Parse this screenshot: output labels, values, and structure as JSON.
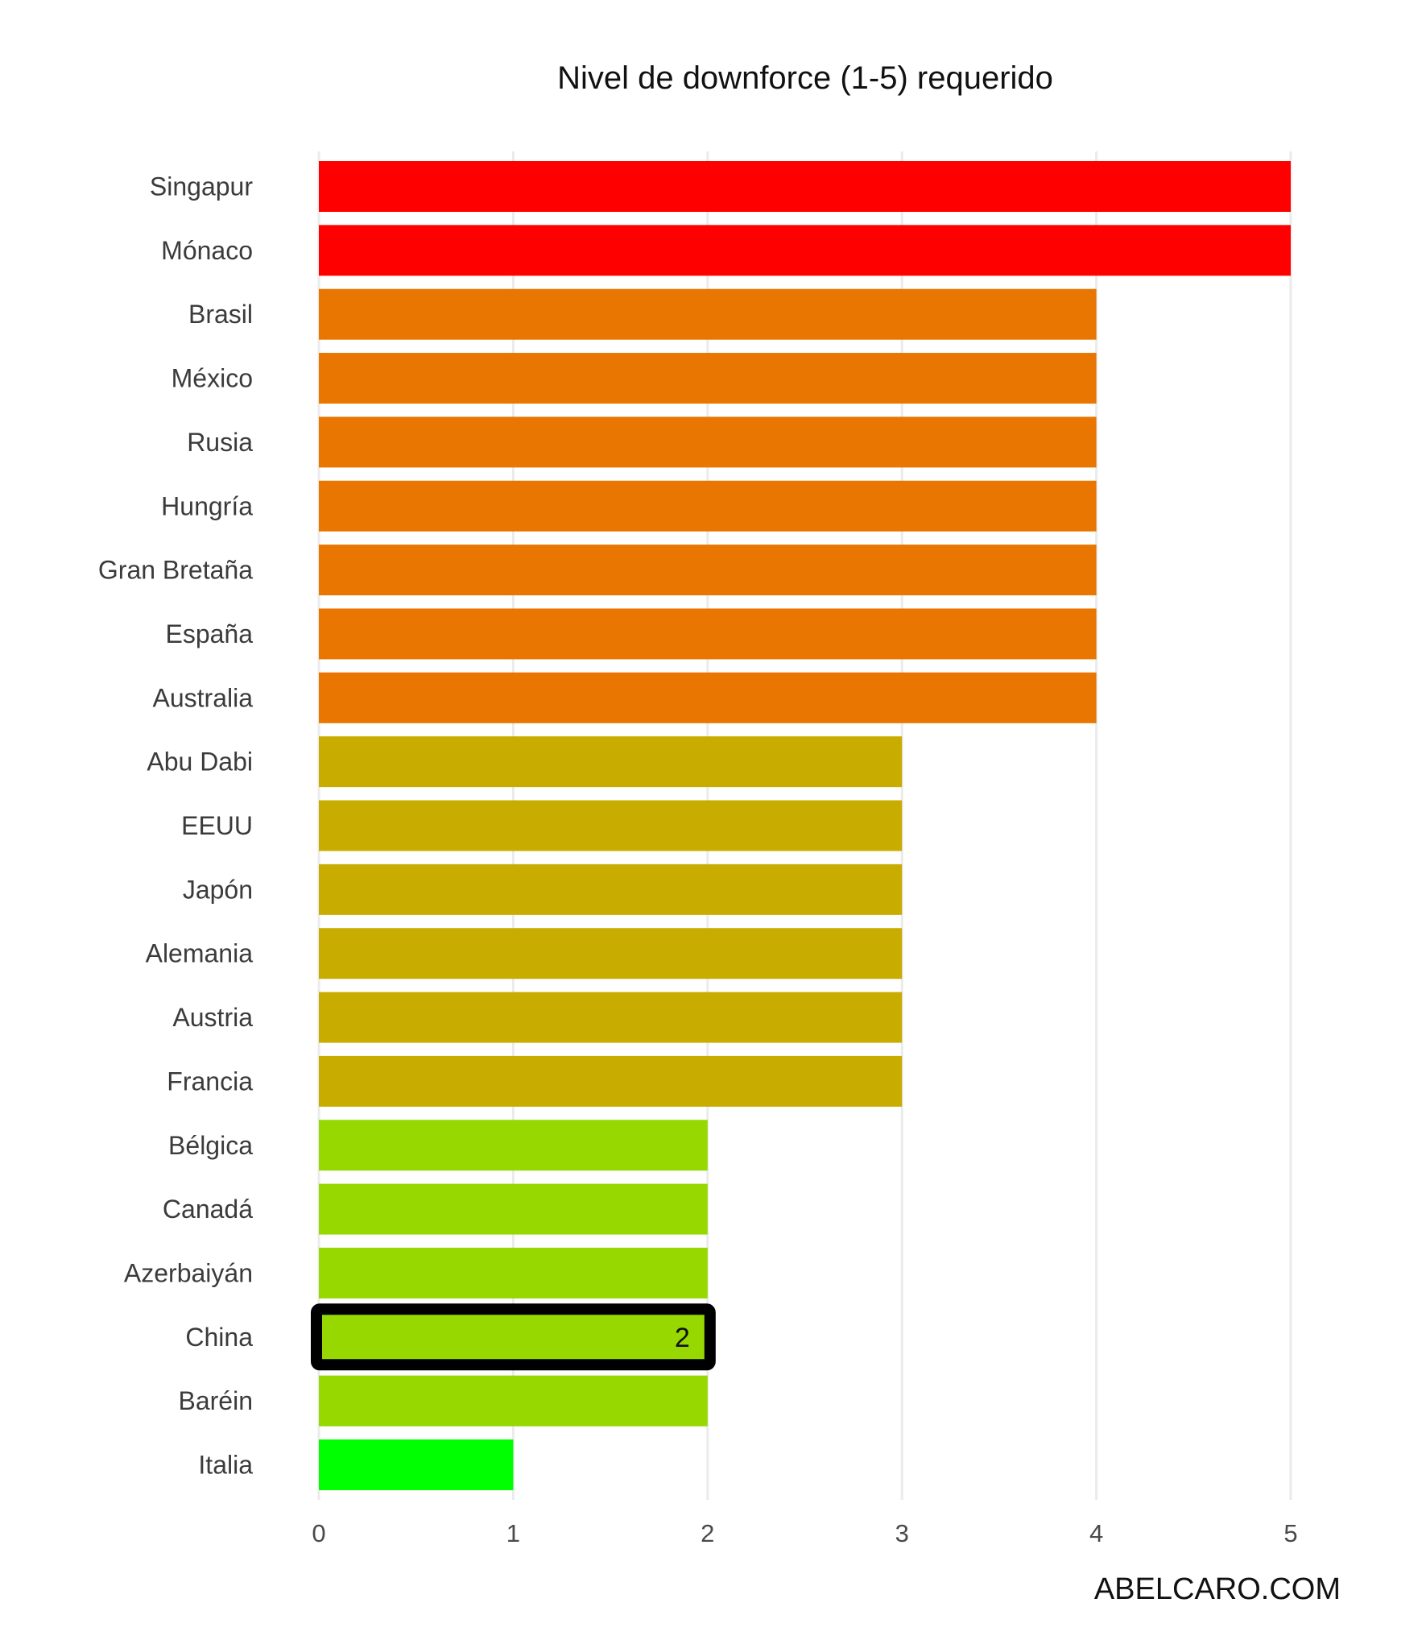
{
  "chart_data": {
    "type": "bar",
    "orientation": "horizontal",
    "title": "Nivel de downforce (1-5) requerido",
    "xlabel": "",
    "ylabel": "",
    "xlim": [
      0,
      5
    ],
    "x_ticks": [
      "0",
      "1",
      "2",
      "3",
      "4",
      "5"
    ],
    "grid": true,
    "legend": "none",
    "categories": [
      "Singapur",
      "Mónaco",
      "Brasil",
      "México",
      "Rusia",
      "Hungría",
      "Gran Bretaña",
      "España",
      "Australia",
      "Abu Dabi",
      "EEUU",
      "Japón",
      "Alemania",
      "Austria",
      "Francia",
      "Bélgica",
      "Canadá",
      "Azerbaiyán",
      "China",
      "Baréin",
      "Italia"
    ],
    "values": [
      5,
      5,
      4,
      4,
      4,
      4,
      4,
      4,
      4,
      3,
      3,
      3,
      3,
      3,
      3,
      2,
      2,
      2,
      2,
      2,
      1
    ],
    "level_colors": {
      "5": "#ff0000",
      "4": "#e87600",
      "3": "#c8ad00",
      "2": "#96d800",
      "1": "#00ff00"
    },
    "highlight": {
      "category": "China",
      "value_label": "2",
      "outline_color": "#000000"
    }
  },
  "watermark": "ABELCARO.COM"
}
